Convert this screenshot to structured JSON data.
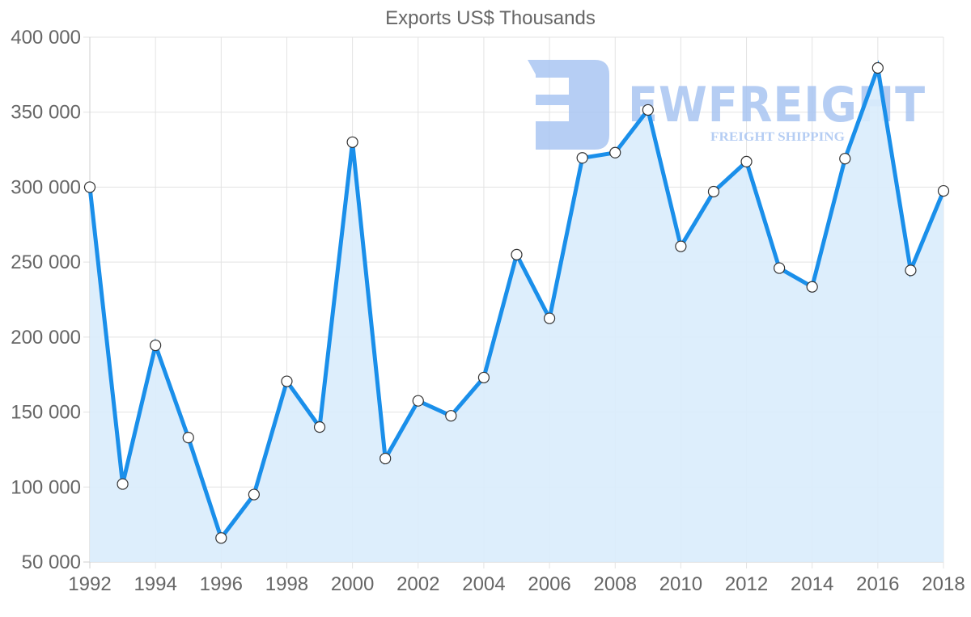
{
  "chart_data": {
    "type": "line",
    "title": "Exports US$ Thousands",
    "xlabel": "",
    "ylabel": "",
    "x": [
      1992,
      1993,
      1994,
      1995,
      1996,
      1997,
      1998,
      1999,
      2000,
      2001,
      2002,
      2003,
      2004,
      2005,
      2006,
      2007,
      2008,
      2009,
      2010,
      2011,
      2012,
      2013,
      2014,
      2015,
      2016,
      2017,
      2018
    ],
    "series": [
      {
        "name": "Exports US$ Thousands",
        "values": [
          300000,
          102000,
          194500,
          133000,
          66000,
          95000,
          170500,
          140000,
          330000,
          119000,
          157500,
          147500,
          173000,
          255000,
          212500,
          319500,
          323000,
          351500,
          260500,
          297000,
          317000,
          246000,
          233500,
          319000,
          379500,
          244500,
          297500
        ]
      }
    ],
    "ylim": [
      50000,
      400000
    ],
    "y_ticks": [
      "50 000",
      "100 000",
      "150 000",
      "200 000",
      "250 000",
      "300 000",
      "350 000",
      "400 000"
    ],
    "x_tick_labels": [
      "1992",
      "1994",
      "1996",
      "1998",
      "2000",
      "2002",
      "2004",
      "2006",
      "2008",
      "2010",
      "2012",
      "2014",
      "2016",
      "2018"
    ],
    "grid": true,
    "legend": "none",
    "filled_area": true
  },
  "colors": {
    "line": "#1a8fea",
    "fill": "#d9ecfc",
    "point_fill": "#ffffff",
    "point_stroke": "#333333",
    "watermark": "#a9c5f2"
  },
  "watermark": {
    "brand": "EWFREIGHT",
    "tagline": "FREIGHT SHIPPING"
  }
}
